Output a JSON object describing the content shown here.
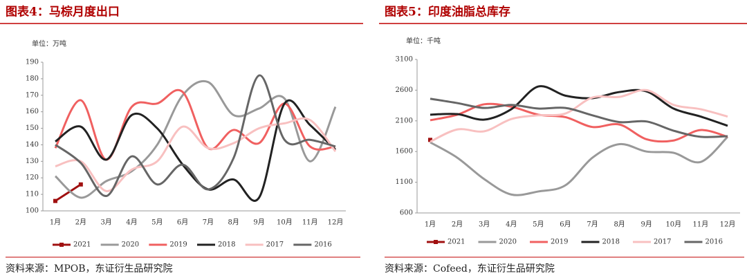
{
  "chart_data": [
    {
      "type": "line",
      "title": "图表4：马棕月度出口",
      "unit_label": "单位：万吨",
      "source": "资料来源：MPOB，东证衍生品研究院",
      "categories": [
        "1月",
        "2月",
        "3月",
        "4月",
        "5月",
        "6月",
        "7月",
        "8月",
        "9月",
        "10月",
        "11月",
        "12月"
      ],
      "ylim": [
        100,
        190
      ],
      "yticks": [
        100,
        110,
        120,
        130,
        140,
        150,
        160,
        170,
        180,
        190
      ],
      "series": [
        {
          "name": "2021",
          "color": "#a01010",
          "values": [
            106,
            116,
            null,
            null,
            null,
            null,
            null,
            null,
            null,
            null,
            null,
            null
          ]
        },
        {
          "name": "2020",
          "color": "#999999",
          "values": [
            121,
            108,
            118,
            124,
            140,
            170,
            178,
            158,
            162,
            168,
            130,
            163
          ]
        },
        {
          "name": "2019",
          "color": "#f06060",
          "values": [
            138,
            167,
            131,
            163,
            165,
            172,
            138,
            149,
            141,
            165,
            139,
            139
          ]
        },
        {
          "name": "2018",
          "color": "#222222",
          "values": [
            142,
            151,
            131,
            158,
            150,
            128,
            113,
            119,
            108,
            165,
            152,
            137
          ]
        },
        {
          "name": "2017",
          "color": "#f8c0c0",
          "values": [
            127,
            130,
            112,
            125,
            130,
            151,
            138,
            141,
            150,
            153,
            155,
            136
          ]
        },
        {
          "name": "2016",
          "color": "#666666",
          "values": [
            140,
            129,
            109,
            133,
            116,
            128,
            113,
            132,
            182,
            143,
            143,
            139
          ]
        }
      ]
    },
    {
      "type": "line",
      "title": "图表5：印度油脂总库存",
      "unit_label": "单位：千吨",
      "source": "资料来源：Cofeed，东证衍生品研究院",
      "categories": [
        "1月",
        "2月",
        "3月",
        "4月",
        "5月",
        "6月",
        "7月",
        "8月",
        "9月",
        "10月",
        "11月",
        "12月"
      ],
      "ylim": [
        600,
        3100
      ],
      "yticks": [
        600,
        1100,
        1600,
        2100,
        2600,
        3100
      ],
      "series": [
        {
          "name": "2021",
          "color": "#a01010",
          "values": [
            1790,
            null,
            null,
            null,
            null,
            null,
            null,
            null,
            null,
            null,
            null,
            null
          ]
        },
        {
          "name": "2020",
          "color": "#999999",
          "values": [
            1750,
            1500,
            1150,
            900,
            950,
            1050,
            1500,
            1720,
            1600,
            1580,
            1430,
            1840
          ]
        },
        {
          "name": "2019",
          "color": "#f06060",
          "values": [
            2110,
            2200,
            2370,
            2330,
            2200,
            2160,
            2000,
            2040,
            1800,
            1780,
            1950,
            1840
          ]
        },
        {
          "name": "2018",
          "color": "#222222",
          "values": [
            2200,
            2210,
            2120,
            2290,
            2660,
            2510,
            2470,
            2570,
            2580,
            2300,
            2170,
            2020
          ]
        },
        {
          "name": "2017",
          "color": "#f8c0c0",
          "values": [
            1760,
            1960,
            1930,
            2130,
            2190,
            2220,
            2480,
            2490,
            2600,
            2360,
            2290,
            2170
          ]
        },
        {
          "name": "2016",
          "color": "#666666",
          "values": [
            2460,
            2390,
            2310,
            2360,
            2300,
            2310,
            2190,
            2080,
            2090,
            1940,
            1840,
            1850
          ]
        }
      ]
    }
  ]
}
